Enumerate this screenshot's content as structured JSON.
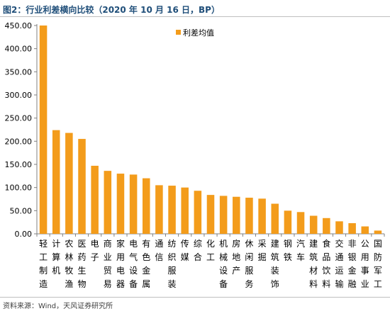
{
  "title": "图2：行业利差横向比较（2020 年 10 月 16 日，BP）",
  "source": "资料来源：Wind，天风证券研究所",
  "colors": {
    "bar": "#f39c1b",
    "title": "#1f4e79"
  },
  "chart_data": {
    "type": "bar",
    "title": "",
    "xlabel": "",
    "ylabel": "",
    "ylim": [
      0,
      450
    ],
    "yticks": [
      "0.00",
      "50.00",
      "100.00",
      "150.00",
      "200.00",
      "250.00",
      "300.00",
      "350.00",
      "400.00",
      "450.00"
    ],
    "grid": false,
    "legend_position": "top-right",
    "categories": [
      "轻工制造",
      "计算机",
      "农林牧渔",
      "医药生物",
      "电子",
      "商业贸易",
      "家用电器",
      "电气设备",
      "有色金属",
      "通信",
      "纺织服装",
      "传媒",
      "综合",
      "化工",
      "机械设备",
      "房地产",
      "休闲服务",
      "采掘",
      "建筑装饰",
      "钢铁",
      "汽车",
      "建筑材料",
      "食品饮料",
      "交通运输",
      "非银金融",
      "公用事业",
      "国防军工"
    ],
    "series": [
      {
        "name": "利差均值",
        "values": [
          450,
          224,
          218,
          205,
          147,
          136,
          130,
          128,
          120,
          105,
          104,
          100,
          93,
          84,
          82,
          80,
          78,
          76,
          65,
          50,
          47,
          39,
          34,
          27,
          23,
          16,
          7
        ]
      }
    ]
  }
}
